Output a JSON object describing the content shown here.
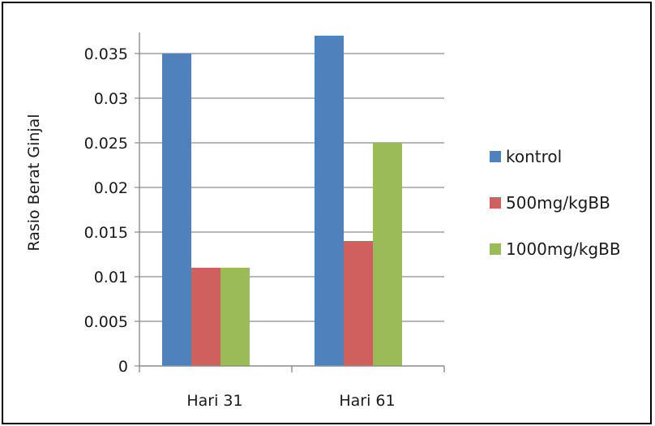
{
  "chart_data": {
    "type": "bar",
    "title": "",
    "xlabel": "",
    "ylabel": "Rasio Berat Ginjal",
    "categories": [
      "Hari 31",
      "Hari 61"
    ],
    "series": [
      {
        "name": "kontrol",
        "color": "#4f81bd",
        "values": [
          0.035,
          0.037
        ]
      },
      {
        "name": "500mg/kgBB",
        "color": "#d0605e",
        "values": [
          0.011,
          0.014
        ]
      },
      {
        "name": "1000mg/kgBB",
        "color": "#9bbb59",
        "values": [
          0.011,
          0.025
        ]
      }
    ],
    "ylim": [
      0,
      0.037
    ],
    "yticks": [
      "0",
      "0.005",
      "0.01",
      "0.015",
      "0.02",
      "0.025",
      "0.03",
      "0.035"
    ],
    "ytick_values": [
      0,
      0.005,
      0.01,
      0.015,
      0.02,
      0.025,
      0.03,
      0.035
    ],
    "grid": "horizontal",
    "legend_position": "right",
    "gridline_color": "#8c8c8c"
  }
}
